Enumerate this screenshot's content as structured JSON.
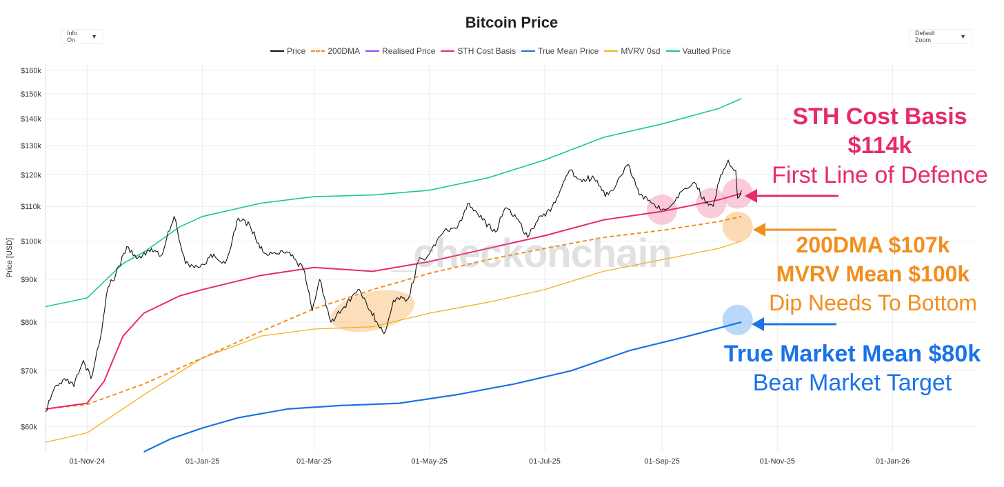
{
  "header": {
    "title": "Bitcoin Price"
  },
  "controls": {
    "info_label": "Info On",
    "zoom_label": "Default Zoom",
    "caret": "▼"
  },
  "watermark": "_checkonchain",
  "colors": {
    "price": "#111111",
    "dma200": "#f28e1e",
    "realised": "#8a4df0",
    "sth": "#e8296b",
    "true_mean": "#1a73e8",
    "mvrv": "#f2b21e",
    "vaulted": "#19c98a"
  },
  "annotations": {
    "sth_title": "STH Cost Basis",
    "sth_value": "$114k",
    "sth_sub": "First Line of Defence",
    "dma_line": "200DMA $107k",
    "mvrv_line": "MVRV Mean $100k",
    "mvrv_sub": "Dip Needs To Bottom",
    "tmm_line": "True Market Mean $80k",
    "tmm_sub": "Bear Market Target"
  },
  "chart_data": {
    "type": "line",
    "title": "Bitcoin Price",
    "ylabel": "Price [USD]",
    "yscale": "log",
    "ylim": [
      56000,
      163000
    ],
    "xlim": [
      "2024-10-10",
      "2026-02-15"
    ],
    "y_ticks": [
      60000,
      70000,
      80000,
      90000,
      100000,
      110000,
      120000,
      130000,
      140000,
      150000,
      160000
    ],
    "y_tick_labels": [
      "$60k",
      "$70k",
      "$80k",
      "$90k",
      "$100k",
      "$110k",
      "$120k",
      "$130k",
      "$140k",
      "$150k",
      "$160k"
    ],
    "x_ticks": [
      "2024-11-01",
      "2025-01-01",
      "2025-03-01",
      "2025-05-01",
      "2025-07-01",
      "2025-09-01",
      "2025-11-01",
      "2026-01-01"
    ],
    "x_tick_labels": [
      "01-Nov-24",
      "01-Jan-25",
      "01-Mar-25",
      "01-May-25",
      "01-Jul-25",
      "01-Sep-25",
      "01-Nov-25",
      "01-Jan-26"
    ],
    "series": [
      {
        "name": "Price",
        "key": "price",
        "dashed": false,
        "width": 1.1,
        "points": [
          [
            "2024-10-10",
            62500
          ],
          [
            "2024-10-15",
            67000
          ],
          [
            "2024-10-20",
            68500
          ],
          [
            "2024-10-25",
            67000
          ],
          [
            "2024-10-30",
            72000
          ],
          [
            "2024-11-03",
            68500
          ],
          [
            "2024-11-08",
            76500
          ],
          [
            "2024-11-12",
            88000
          ],
          [
            "2024-11-16",
            91000
          ],
          [
            "2024-11-22",
            98500
          ],
          [
            "2024-11-28",
            95500
          ],
          [
            "2024-12-05",
            98000
          ],
          [
            "2024-12-10",
            96000
          ],
          [
            "2024-12-17",
            107000
          ],
          [
            "2024-12-23",
            94000
          ],
          [
            "2024-12-30",
            93000
          ],
          [
            "2025-01-07",
            96500
          ],
          [
            "2025-01-13",
            94000
          ],
          [
            "2025-01-20",
            106500
          ],
          [
            "2025-01-26",
            104500
          ],
          [
            "2025-02-02",
            97000
          ],
          [
            "2025-02-09",
            96500
          ],
          [
            "2025-02-16",
            97000
          ],
          [
            "2025-02-24",
            92000
          ],
          [
            "2025-02-28",
            82500
          ],
          [
            "2025-03-04",
            90000
          ],
          [
            "2025-03-10",
            80000
          ],
          [
            "2025-03-17",
            83500
          ],
          [
            "2025-03-25",
            87500
          ],
          [
            "2025-03-31",
            82500
          ],
          [
            "2025-04-07",
            77500
          ],
          [
            "2025-04-12",
            85000
          ],
          [
            "2025-04-20",
            85500
          ],
          [
            "2025-04-25",
            94500
          ],
          [
            "2025-05-01",
            96500
          ],
          [
            "2025-05-09",
            103000
          ],
          [
            "2025-05-15",
            103500
          ],
          [
            "2025-05-22",
            111000
          ],
          [
            "2025-05-29",
            106000
          ],
          [
            "2025-06-05",
            102500
          ],
          [
            "2025-06-10",
            109500
          ],
          [
            "2025-06-16",
            106500
          ],
          [
            "2025-06-22",
            101000
          ],
          [
            "2025-06-28",
            107000
          ],
          [
            "2025-07-04",
            108500
          ],
          [
            "2025-07-10",
            116000
          ],
          [
            "2025-07-14",
            121500
          ],
          [
            "2025-07-20",
            118500
          ],
          [
            "2025-07-27",
            119000
          ],
          [
            "2025-08-02",
            113000
          ],
          [
            "2025-08-08",
            117000
          ],
          [
            "2025-08-14",
            123500
          ],
          [
            "2025-08-20",
            113500
          ],
          [
            "2025-08-27",
            111000
          ],
          [
            "2025-09-01",
            109000
          ],
          [
            "2025-09-07",
            111000
          ],
          [
            "2025-09-13",
            115500
          ],
          [
            "2025-09-19",
            117000
          ],
          [
            "2025-09-24",
            111000
          ],
          [
            "2025-09-28",
            110000
          ],
          [
            "2025-10-02",
            120000
          ],
          [
            "2025-10-06",
            125000
          ],
          [
            "2025-10-08",
            122500
          ],
          [
            "2025-10-10",
            121500
          ],
          [
            "2025-10-11",
            112500
          ],
          [
            "2025-10-13",
            115000
          ]
        ]
      },
      {
        "name": "200DMA",
        "key": "dma200",
        "dashed": true,
        "width": 2,
        "points": [
          [
            "2024-10-10",
            63000
          ],
          [
            "2024-11-01",
            63800
          ],
          [
            "2024-12-01",
            67500
          ],
          [
            "2025-01-01",
            72500
          ],
          [
            "2025-02-01",
            78000
          ],
          [
            "2025-03-01",
            83000
          ],
          [
            "2025-04-01",
            87500
          ],
          [
            "2025-05-01",
            91500
          ],
          [
            "2025-06-01",
            95000
          ],
          [
            "2025-07-01",
            98000
          ],
          [
            "2025-08-01",
            101000
          ],
          [
            "2025-09-01",
            103000
          ],
          [
            "2025-10-01",
            105500
          ],
          [
            "2025-10-13",
            107000
          ]
        ]
      },
      {
        "name": "Realised Price",
        "key": "realised",
        "dashed": false,
        "width": 2,
        "points": []
      },
      {
        "name": "STH Cost Basis",
        "key": "sth",
        "dashed": false,
        "width": 2,
        "points": [
          [
            "2024-10-10",
            63000
          ],
          [
            "2024-11-01",
            64000
          ],
          [
            "2024-11-10",
            68000
          ],
          [
            "2024-11-20",
            77000
          ],
          [
            "2024-12-01",
            82000
          ],
          [
            "2024-12-20",
            86000
          ],
          [
            "2025-01-01",
            87500
          ],
          [
            "2025-02-01",
            91000
          ],
          [
            "2025-03-01",
            93000
          ],
          [
            "2025-04-01",
            92000
          ],
          [
            "2025-05-01",
            94500
          ],
          [
            "2025-06-01",
            98000
          ],
          [
            "2025-07-01",
            101500
          ],
          [
            "2025-08-01",
            106000
          ],
          [
            "2025-09-01",
            108500
          ],
          [
            "2025-10-01",
            112000
          ],
          [
            "2025-10-13",
            114000
          ]
        ]
      },
      {
        "name": "True Mean Price",
        "key": "true_mean",
        "dashed": false,
        "width": 2.2,
        "points": [
          [
            "2024-12-01",
            56000
          ],
          [
            "2024-12-15",
            58000
          ],
          [
            "2025-01-01",
            59800
          ],
          [
            "2025-01-20",
            61500
          ],
          [
            "2025-02-15",
            63000
          ],
          [
            "2025-03-15",
            63600
          ],
          [
            "2025-04-15",
            64000
          ],
          [
            "2025-05-15",
            65500
          ],
          [
            "2025-06-15",
            67500
          ],
          [
            "2025-07-15",
            70000
          ],
          [
            "2025-08-15",
            74000
          ],
          [
            "2025-09-15",
            77000
          ],
          [
            "2025-10-13",
            80000
          ]
        ]
      },
      {
        "name": "MVRV 0sd",
        "key": "mvrv",
        "dashed": false,
        "width": 1.3,
        "points": [
          [
            "2024-10-10",
            57500
          ],
          [
            "2024-11-01",
            59000
          ],
          [
            "2024-12-01",
            65500
          ],
          [
            "2025-01-01",
            72500
          ],
          [
            "2025-02-01",
            77000
          ],
          [
            "2025-03-01",
            78500
          ],
          [
            "2025-04-01",
            79000
          ],
          [
            "2025-05-01",
            82000
          ],
          [
            "2025-06-01",
            84500
          ],
          [
            "2025-07-01",
            87500
          ],
          [
            "2025-08-01",
            92000
          ],
          [
            "2025-09-01",
            95000
          ],
          [
            "2025-10-01",
            98000
          ],
          [
            "2025-10-13",
            100000
          ]
        ]
      },
      {
        "name": "Vaulted Price",
        "key": "vaulted",
        "dashed": false,
        "width": 1.6,
        "points": [
          [
            "2024-10-10",
            83500
          ],
          [
            "2024-11-01",
            85500
          ],
          [
            "2024-11-20",
            94000
          ],
          [
            "2024-12-01",
            97000
          ],
          [
            "2024-12-20",
            104000
          ],
          [
            "2025-01-01",
            107000
          ],
          [
            "2025-02-01",
            111000
          ],
          [
            "2025-03-01",
            113000
          ],
          [
            "2025-04-01",
            113500
          ],
          [
            "2025-05-01",
            115000
          ],
          [
            "2025-06-01",
            119000
          ],
          [
            "2025-07-01",
            125000
          ],
          [
            "2025-08-01",
            133000
          ],
          [
            "2025-09-01",
            138000
          ],
          [
            "2025-10-01",
            144000
          ],
          [
            "2025-10-13",
            148000
          ]
        ]
      }
    ],
    "highlights": [
      {
        "date": "2025-09-01",
        "value": 109000,
        "color": "pink"
      },
      {
        "date": "2025-09-27",
        "value": 111000,
        "color": "pink"
      },
      {
        "date": "2025-10-11",
        "value": 114000,
        "color": "pink"
      },
      {
        "date": "2025-10-11",
        "value": 104000,
        "color": "orange"
      },
      {
        "date": "2025-10-11",
        "value": 80500,
        "color": "blue"
      },
      {
        "date": "2025-04-01",
        "value": 82500,
        "color": "orange-ellipse"
      }
    ]
  }
}
